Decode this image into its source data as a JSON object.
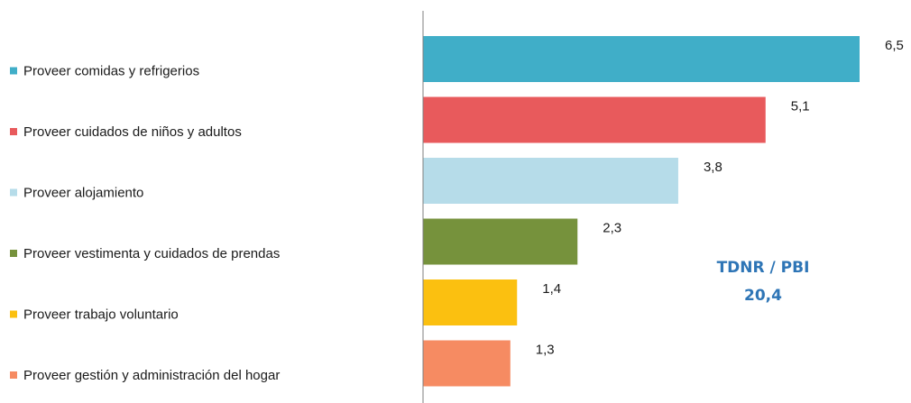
{
  "chart_data": {
    "type": "bar",
    "orientation": "horizontal",
    "categories": [
      "Proveer comidas y refrigerios",
      "Proveer cuidados de niños y adultos",
      "Proveer alojamiento",
      "Proveer vestimenta y cuidados de prendas",
      "Proveer trabajo voluntario",
      "Proveer gestión y administración del hogar"
    ],
    "values": [
      6.5,
      5.1,
      3.8,
      2.3,
      1.4,
      1.3
    ],
    "value_labels": [
      "6,5",
      "5,1",
      "3,8",
      "2,3",
      "1,4",
      "1,3"
    ],
    "colors": [
      "#40aec8",
      "#e85a5c",
      "#b6dce9",
      "#76923c",
      "#fbc010",
      "#f68b62"
    ],
    "xlim": [
      0,
      6.5
    ],
    "legend_position": "left",
    "grid": false,
    "title": "",
    "xlabel": "",
    "ylabel": "",
    "annotation": {
      "line1": "TDNR / PBI",
      "line2": "20,4",
      "color": "#2e75b6"
    }
  }
}
